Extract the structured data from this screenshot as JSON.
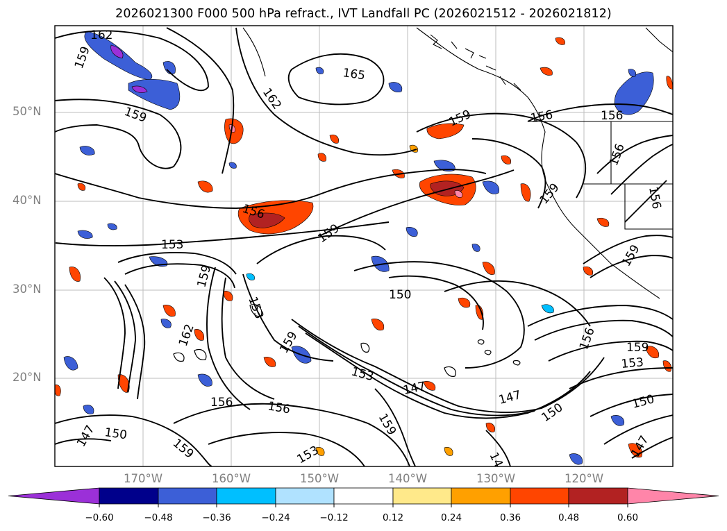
{
  "title": "2026021300 F000 500 hPa refract., IVT Landfall PC (2026021512 - 2026021812)",
  "lat_labels": [
    "50°N",
    "40°N",
    "30°N",
    "20°N"
  ],
  "lon_labels": [
    "170°W",
    "160°W",
    "150°W",
    "140°W",
    "130°W",
    "120°W"
  ],
  "contour_labels": [
    {
      "text": "162"
    },
    {
      "text": "159"
    },
    {
      "text": "159"
    },
    {
      "text": "162"
    },
    {
      "text": "165"
    },
    {
      "text": "159"
    },
    {
      "text": "156"
    },
    {
      "text": "156"
    },
    {
      "text": "156"
    },
    {
      "text": "156"
    },
    {
      "text": "159"
    },
    {
      "text": "153"
    },
    {
      "text": "159"
    },
    {
      "text": "159"
    },
    {
      "text": "153"
    },
    {
      "text": "162"
    },
    {
      "text": "150"
    },
    {
      "text": "159"
    },
    {
      "text": "153"
    },
    {
      "text": "147"
    },
    {
      "text": "147"
    },
    {
      "text": "150"
    },
    {
      "text": "156"
    },
    {
      "text": "156"
    },
    {
      "text": "150"
    },
    {
      "text": "147"
    },
    {
      "text": "159"
    },
    {
      "text": "159"
    },
    {
      "text": "153"
    },
    {
      "text": "14"
    },
    {
      "text": "150"
    },
    {
      "text": "147"
    },
    {
      "text": "156"
    },
    {
      "text": "153"
    },
    {
      "text": "159"
    },
    {
      "text": "159"
    },
    {
      "text": "156"
    }
  ],
  "colorbar": {
    "colors": [
      "#9b30d8",
      "#00008b",
      "#3c5fd7",
      "#00bfff",
      "#b0e2ff",
      "#ffffff",
      "#ffe98a",
      "#ffa000",
      "#ff4500",
      "#b22222",
      "#ff85a9"
    ],
    "ticks": [
      "−0.60",
      "−0.48",
      "−0.36",
      "−0.24",
      "−0.12",
      "0.12",
      "0.24",
      "0.36",
      "0.48",
      "0.60"
    ]
  }
}
